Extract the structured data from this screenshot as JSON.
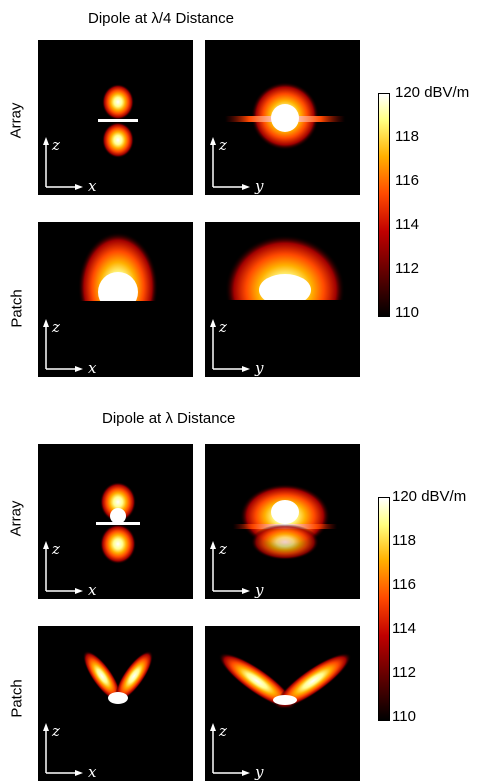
{
  "sections": [
    {
      "title": "Dipole at λ/4 Distance",
      "rows": [
        {
          "label": "Array",
          "panels": [
            {
              "axes": [
                "z",
                "x"
              ]
            },
            {
              "axes": [
                "z",
                "y"
              ]
            }
          ]
        },
        {
          "label": "Patch",
          "panels": [
            {
              "axes": [
                "z",
                "x"
              ]
            },
            {
              "axes": [
                "z",
                "y"
              ]
            }
          ]
        }
      ],
      "colorbar": {
        "ticks": [
          "120 dBV/m",
          "118",
          "116",
          "114",
          "112",
          "110"
        ],
        "range": [
          110,
          120
        ],
        "unit": "dBV/m"
      }
    },
    {
      "title": "Dipole at λ Distance",
      "rows": [
        {
          "label": "Array",
          "panels": [
            {
              "axes": [
                "z",
                "x"
              ]
            },
            {
              "axes": [
                "z",
                "y"
              ]
            }
          ]
        },
        {
          "label": "Patch",
          "panels": [
            {
              "axes": [
                "z",
                "x"
              ]
            },
            {
              "axes": [
                "z",
                "y"
              ]
            }
          ]
        }
      ],
      "colorbar": {
        "ticks": [
          "120 dBV/m",
          "118",
          "116",
          "114",
          "112",
          "110"
        ],
        "range": [
          110,
          120
        ],
        "unit": "dBV/m"
      }
    }
  ],
  "colors": {
    "background": "#000000",
    "colormap": [
      "#000000",
      "#5a0000",
      "#c00000",
      "#ff4a00",
      "#ffb000",
      "#ffff80",
      "#ffffff"
    ]
  }
}
